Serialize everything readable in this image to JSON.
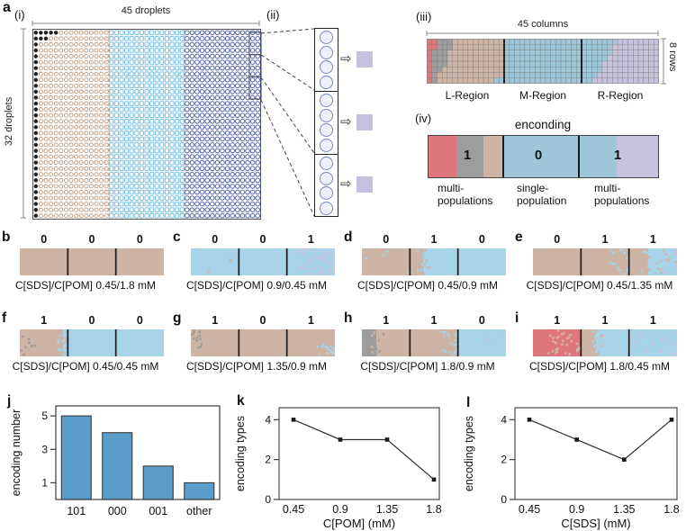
{
  "colors": {
    "tan": "#cdb4a4",
    "blue": "#a7d4e8",
    "region_blue": "#9dc6d8",
    "lavender": "#c9c2de",
    "red": "#df767c",
    "gray": "#9d9d9d",
    "bar_blue": "#5b9dc9",
    "purple_square": "#c7c0e0",
    "droplet_tan": "#bf9878",
    "droplet_light_blue": "#74bfe4",
    "droplet_dark_blue": "#5166ad",
    "droplet_black": "#1f1f1f",
    "axis": "#3d3d3d"
  },
  "panel_a": {
    "label": "a",
    "i": {
      "label": "(i)",
      "top_ruler": "45 droplets",
      "left_ruler": "32 droplets",
      "array": {
        "cols": 45,
        "rows": 32,
        "tan_end": 15,
        "light_end": 30,
        "black_row0": 5,
        "black_row1": 3
      }
    },
    "ii": {
      "label": "(ii)",
      "groups": 3,
      "per_group": 4,
      "arrow": "⇨"
    },
    "iii": {
      "label": "(iii)",
      "top_ruler": "45 columns",
      "right_ruler": "8 rows",
      "regions": [
        "L-Region",
        "M-Region",
        "R-Region"
      ],
      "grid": {
        "cols": 45,
        "rows": 8,
        "gray_end": [
          5,
          5,
          4,
          4,
          4,
          3,
          2,
          2
        ],
        "blue_end": [
          37,
          36,
          36,
          35,
          34,
          34,
          33,
          32
        ],
        "div1": 15,
        "div2": 30
      }
    },
    "iv": {
      "label": "(iv)",
      "title": "enconding",
      "digits": [
        "1",
        "0",
        "1"
      ],
      "captions": [
        [
          "multi-",
          "populations"
        ],
        [
          "single-",
          "population"
        ],
        [
          "multi-",
          "populations"
        ]
      ]
    }
  },
  "strip_panels": [
    {
      "label": "b",
      "digits": [
        "0",
        "0",
        "0"
      ],
      "caption": "C[SDS]/C[POM] 0.45/1.8 mM",
      "segments": [
        {
          "base": "tan"
        },
        {
          "base": "tan"
        },
        {
          "base": "tan"
        }
      ]
    },
    {
      "label": "c",
      "digits": [
        "0",
        "0",
        "1"
      ],
      "caption": "C[SDS]/C[POM] 0.9/0.45 mM",
      "segments": [
        {
          "base": "blue",
          "sp": [
            [
              "tan",
              "all",
              0.04,
              1
            ]
          ]
        },
        {
          "base": "blue"
        },
        {
          "base": "blue",
          "sp": [
            [
              "lavender",
              "right",
              0.6,
              0.8
            ],
            [
              "lavender",
              "right",
              0.35,
              0.4
            ]
          ]
        }
      ]
    },
    {
      "label": "d",
      "digits": [
        "0",
        "1",
        "0"
      ],
      "caption": "C[SDS]/C[POM] 0.45/0.9 mM",
      "segments": [
        {
          "base": "tan",
          "sp": [
            [
              "blue",
              "all",
              0.07,
              1
            ]
          ]
        },
        {
          "base": "tan",
          "right": [
            "blue",
            0.72
          ],
          "sp": [
            [
              "tan",
              "bnd",
              0.25,
              0.3
            ],
            [
              "blue",
              "bnd",
              0.25,
              0.3
            ]
          ]
        },
        {
          "base": "blue"
        }
      ]
    },
    {
      "label": "e",
      "digits": [
        "0",
        "1",
        "1"
      ],
      "caption": "C[SDS]/C[POM] 0.45/1.35 mM",
      "segments": [
        {
          "base": "tan"
        },
        {
          "base": "tan",
          "sp": [
            [
              "blue",
              "right",
              0.3,
              0.45
            ]
          ]
        },
        {
          "base": "blue",
          "left": [
            "tan",
            0.4
          ],
          "sp": [
            [
              "tan",
              "all",
              0.4,
              1
            ],
            [
              "blue",
              "bnd",
              0.2,
              0.4
            ],
            [
              "lavender",
              "right",
              0.12,
              0.3
            ]
          ]
        }
      ]
    },
    {
      "label": "f",
      "digits": [
        "1",
        "0",
        "0"
      ],
      "caption": "C[SDS]/C[POM] 0.45/0.45 mM",
      "segments": [
        {
          "base": "tan",
          "right": [
            "blue",
            0.1
          ],
          "sp": [
            [
              "gray",
              "left",
              0.18,
              0.3
            ],
            [
              "blue",
              "bnd",
              0.25,
              0.35
            ],
            [
              "tan",
              "bnd",
              0.2,
              0.3
            ]
          ]
        },
        {
          "base": "blue"
        },
        {
          "base": "blue"
        }
      ]
    },
    {
      "label": "g",
      "digits": [
        "1",
        "0",
        "1"
      ],
      "caption": "C[SDS]/C[POM] 1.35/0.9 mM",
      "segments": [
        {
          "base": "tan",
          "sp": [
            [
              "gray",
              "left",
              0.25,
              0.22
            ]
          ]
        },
        {
          "base": "tan"
        },
        {
          "base": "tan",
          "sp": [
            [
              "blue",
              "corner",
              0.3,
              0.45
            ]
          ]
        }
      ]
    },
    {
      "label": "h",
      "digits": [
        "1",
        "1",
        "0"
      ],
      "caption": "C[SDS]/C[POM] 1.8/0.9 mM",
      "segments": [
        {
          "base": "tan",
          "left": [
            "gray",
            0.3
          ],
          "sp": [
            [
              "gray",
              "bnd",
              0.22,
              0.28
            ],
            [
              "tan",
              "bnd",
              0.15,
              0.28
            ]
          ]
        },
        {
          "base": "tan",
          "sp": [
            [
              "blue",
              "right",
              0.38,
              0.4
            ]
          ]
        },
        {
          "base": "blue",
          "sp": [
            [
              "lavender",
              "all",
              0.05,
              1
            ]
          ]
        }
      ]
    },
    {
      "label": "i",
      "digits": [
        "1",
        "1",
        "1"
      ],
      "caption": "C[SDS]/C[POM] 1.8/0.45 mM",
      "segments": [
        {
          "base": "red",
          "sp": [
            [
              "tan",
              "right",
              0.5,
              0.65
            ],
            [
              "tan",
              "all",
              0.12,
              1
            ]
          ]
        },
        {
          "base": "blue",
          "left": [
            "tan",
            0.32
          ],
          "sp": [
            [
              "tan",
              "bnd",
              0.25,
              0.35
            ],
            [
              "blue",
              "bnd",
              0.2,
              0.3
            ]
          ]
        },
        {
          "base": "blue",
          "sp": [
            [
              "lavender",
              "all",
              0.3,
              1
            ]
          ]
        }
      ]
    }
  ],
  "chart_data": [
    {
      "type": "bar",
      "label": "j",
      "categories": [
        "101",
        "000",
        "001",
        "other"
      ],
      "values": [
        5,
        4,
        2,
        1
      ],
      "ylabel": "encoding number",
      "yticks": [
        1,
        3,
        5
      ],
      "ylim": [
        0,
        5.6
      ],
      "grid": false,
      "bar_color": "#5b9dc9"
    },
    {
      "type": "line",
      "label": "k",
      "x": [
        0.45,
        0.9,
        1.35,
        1.8
      ],
      "x_labels": [
        "0.45",
        "0.9",
        "1.35",
        "1.8"
      ],
      "values": [
        4,
        3,
        3,
        1
      ],
      "ylabel": "encoding types",
      "xlabel": "C[POM] (mM)",
      "yticks": [
        0,
        2,
        4
      ],
      "ylim": [
        0,
        4.6
      ],
      "grid": false
    },
    {
      "type": "line",
      "label": "l",
      "x": [
        0.45,
        0.9,
        1.35,
        1.8
      ],
      "x_labels": [
        "0.45",
        "0.9",
        "1.35",
        "1.8"
      ],
      "values": [
        4,
        3,
        2,
        4
      ],
      "ylabel": "encoding types",
      "xlabel": "C[SDS] (mM)",
      "yticks": [
        0,
        2,
        4
      ],
      "ylim": [
        0,
        4.6
      ],
      "grid": false
    }
  ]
}
